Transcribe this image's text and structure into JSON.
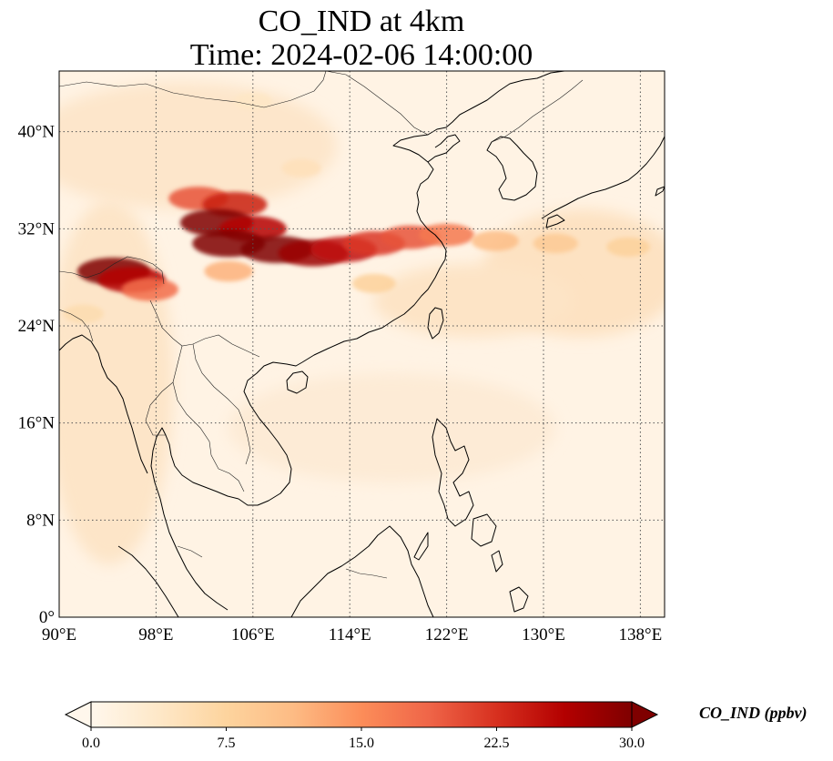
{
  "title": {
    "line1": "CO_IND at 4km",
    "line2": "Time: 2024-02-06 14:00:00"
  },
  "map": {
    "lon_range": [
      90,
      140
    ],
    "lat_range": [
      0,
      45
    ],
    "lon_ticks": [
      {
        "value": 90,
        "label": "90°E"
      },
      {
        "value": 98,
        "label": "98°E"
      },
      {
        "value": 106,
        "label": "106°E"
      },
      {
        "value": 114,
        "label": "114°E"
      },
      {
        "value": 122,
        "label": "122°E"
      },
      {
        "value": 130,
        "label": "130°E"
      },
      {
        "value": 138,
        "label": "138°E"
      }
    ],
    "lat_ticks": [
      {
        "value": 0,
        "label": "0°"
      },
      {
        "value": 8,
        "label": "8°N"
      },
      {
        "value": 16,
        "label": "16°N"
      },
      {
        "value": 24,
        "label": "24°N"
      },
      {
        "value": 32,
        "label": "32°N"
      },
      {
        "value": 40,
        "label": "40°N"
      }
    ],
    "gridlines": true,
    "plumes": [
      {
        "lon": 101.5,
        "lat": 34.5,
        "value": 20
      },
      {
        "lon": 104.5,
        "lat": 34.0,
        "value": 24
      },
      {
        "lon": 103.0,
        "lat": 32.5,
        "value": 30
      },
      {
        "lon": 106.0,
        "lat": 32.0,
        "value": 26
      },
      {
        "lon": 104.0,
        "lat": 30.8,
        "value": 30
      },
      {
        "lon": 108.0,
        "lat": 30.3,
        "value": 30
      },
      {
        "lon": 111.0,
        "lat": 30.0,
        "value": 28
      },
      {
        "lon": 113.5,
        "lat": 30.3,
        "value": 25
      },
      {
        "lon": 116.0,
        "lat": 30.8,
        "value": 22
      },
      {
        "lon": 119.0,
        "lat": 31.3,
        "value": 20
      },
      {
        "lon": 122.0,
        "lat": 31.5,
        "value": 17
      },
      {
        "lon": 126.0,
        "lat": 31.0,
        "value": 11
      },
      {
        "lon": 131.0,
        "lat": 30.8,
        "value": 9
      },
      {
        "lon": 137.0,
        "lat": 30.5,
        "value": 8
      },
      {
        "lon": 94.5,
        "lat": 28.5,
        "value": 30
      },
      {
        "lon": 96.0,
        "lat": 27.8,
        "value": 26
      },
      {
        "lon": 97.5,
        "lat": 27.0,
        "value": 18
      },
      {
        "lon": 104.0,
        "lat": 28.5,
        "value": 12
      },
      {
        "lon": 116.0,
        "lat": 27.5,
        "value": 8
      },
      {
        "lon": 92.0,
        "lat": 25.0,
        "value": 6
      },
      {
        "lon": 106.0,
        "lat": 42.5,
        "value": 4
      },
      {
        "lon": 110.0,
        "lat": 37.0,
        "value": 5
      }
    ]
  },
  "colorbar": {
    "label": "CO_IND (ppbv)",
    "min": 0.0,
    "max": 30.0,
    "extend": "both",
    "colormap": "OrRd",
    "stops": [
      "#fff7ec",
      "#fee8c8",
      "#fdd49e",
      "#fdbb84",
      "#fc8d59",
      "#ef6548",
      "#d7301f",
      "#b30000",
      "#7f0000"
    ],
    "ticks": [
      {
        "value": 0.0,
        "label": "0.0"
      },
      {
        "value": 7.5,
        "label": "7.5"
      },
      {
        "value": 15.0,
        "label": "15.0"
      },
      {
        "value": 22.5,
        "label": "22.5"
      },
      {
        "value": 30.0,
        "label": "30.0"
      }
    ]
  }
}
